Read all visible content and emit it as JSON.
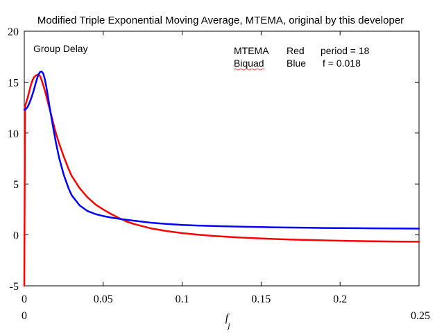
{
  "chart_data": {
    "type": "line",
    "title": "Modified Triple Exponential Moving Average, MTEMA, original by this developer",
    "xlabel": "f",
    "xlabel_subscript": "j",
    "ylabel": "",
    "xlim": [
      0,
      0.25
    ],
    "ylim": [
      -5,
      20
    ],
    "x_range_labels": [
      "0",
      "0.25"
    ],
    "xticks": [
      0,
      0.05,
      0.1,
      0.15,
      0.2
    ],
    "xtick_labels": [
      "0",
      "0.05",
      "0.1",
      "0.15",
      "0.2"
    ],
    "yticks": [
      -5,
      0,
      5,
      10,
      15,
      20
    ],
    "ytick_labels": [
      "-5",
      "0",
      "5",
      "10",
      "15",
      "20"
    ],
    "grid": false,
    "legend": "none",
    "annotations": {
      "group_delay": "Group Delay",
      "mtema_name": "MTEMA",
      "mtema_color_word": "Red",
      "mtema_param": "period = 18",
      "biquad_name": "Biquad",
      "biquad_color_word": "Blue",
      "biquad_param": "f = 0.018"
    },
    "series": [
      {
        "color": "#ff0000",
        "x": [
          0,
          0.0005,
          0.001,
          0.002,
          0.003,
          0.004,
          0.005,
          0.006,
          0.007,
          0.008,
          0.009,
          0.01,
          0.011,
          0.012,
          0.013,
          0.014,
          0.015,
          0.016,
          0.018,
          0.02,
          0.022,
          0.025,
          0.028,
          0.03,
          0.035,
          0.04,
          0.045,
          0.05,
          0.055,
          0.06,
          0.065,
          0.07,
          0.08,
          0.09,
          0.1,
          0.11,
          0.12,
          0.13,
          0.14,
          0.15,
          0.16,
          0.17,
          0.18,
          0.19,
          0.2,
          0.21,
          0.22,
          0.23,
          0.24,
          0.25
        ],
        "values": [
          -5,
          12.6,
          12.9,
          13.4,
          14.0,
          14.6,
          15.1,
          15.45,
          15.6,
          15.7,
          15.75,
          15.6,
          15.2,
          14.7,
          14.2,
          13.6,
          13.0,
          12.4,
          11.2,
          10.0,
          9.0,
          7.7,
          6.5,
          5.8,
          4.6,
          3.7,
          3.0,
          2.5,
          2.05,
          1.65,
          1.3,
          1.05,
          0.65,
          0.38,
          0.18,
          0.02,
          -0.1,
          -0.2,
          -0.28,
          -0.35,
          -0.41,
          -0.46,
          -0.5,
          -0.54,
          -0.57,
          -0.6,
          -0.62,
          -0.64,
          -0.66,
          -0.67
        ]
      },
      {
        "color": "#0000ff",
        "x": [
          0,
          0.0005,
          0.001,
          0.002,
          0.003,
          0.004,
          0.005,
          0.006,
          0.007,
          0.008,
          0.009,
          0.01,
          0.011,
          0.012,
          0.013,
          0.014,
          0.015,
          0.016,
          0.018,
          0.02,
          0.022,
          0.025,
          0.028,
          0.03,
          0.035,
          0.04,
          0.045,
          0.05,
          0.055,
          0.06,
          0.065,
          0.07,
          0.08,
          0.09,
          0.1,
          0.11,
          0.12,
          0.13,
          0.14,
          0.15,
          0.16,
          0.17,
          0.18,
          0.19,
          0.2,
          0.21,
          0.22,
          0.23,
          0.24,
          0.25
        ],
        "values": [
          12.3,
          12.3,
          12.35,
          12.55,
          12.85,
          13.25,
          13.7,
          14.2,
          14.75,
          15.3,
          15.75,
          16.0,
          16.05,
          15.85,
          15.3,
          14.5,
          13.6,
          12.6,
          10.8,
          9.1,
          7.6,
          5.9,
          4.6,
          3.9,
          2.9,
          2.35,
          2.05,
          1.85,
          1.7,
          1.58,
          1.48,
          1.38,
          1.2,
          1.08,
          0.98,
          0.92,
          0.87,
          0.83,
          0.8,
          0.77,
          0.74,
          0.72,
          0.7,
          0.68,
          0.67,
          0.66,
          0.65,
          0.64,
          0.63,
          0.62
        ]
      }
    ]
  }
}
